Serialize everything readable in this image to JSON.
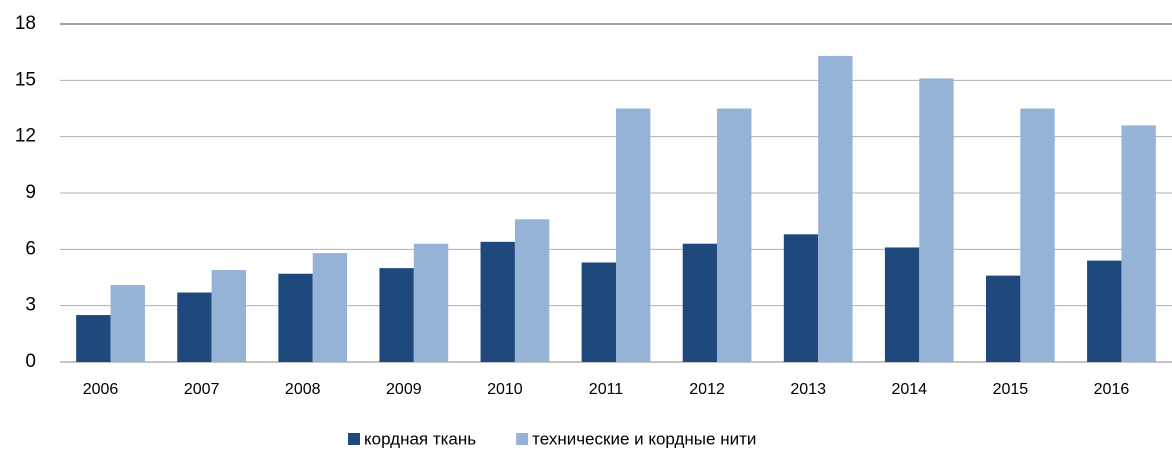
{
  "chart_data": {
    "type": "bar",
    "categories": [
      "2006",
      "2007",
      "2008",
      "2009",
      "2010",
      "2011",
      "2012",
      "2013",
      "2014",
      "2015",
      "2016"
    ],
    "series": [
      {
        "name": "кордная ткань",
        "color": "#1f497d",
        "values": [
          2.5,
          3.7,
          4.7,
          5.0,
          6.4,
          5.3,
          6.3,
          6.8,
          6.1,
          4.6,
          5.4
        ]
      },
      {
        "name": "технические и кордные нити",
        "color": "#95b3d7",
        "values": [
          4.1,
          4.9,
          5.8,
          6.3,
          7.6,
          13.5,
          13.5,
          16.3,
          15.1,
          13.5,
          12.6
        ]
      }
    ],
    "ylim": [
      0,
      18
    ],
    "yticks": [
      0,
      3,
      6,
      9,
      12,
      15,
      18
    ],
    "grid": true,
    "legend": "bottom"
  }
}
